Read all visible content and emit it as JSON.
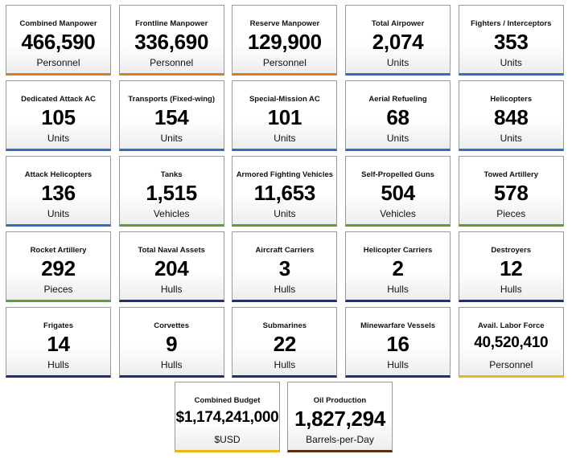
{
  "cards": [
    {
      "label": "Combined Manpower",
      "value": "466,590",
      "unit": "Personnel",
      "accent": "#e07a1a"
    },
    {
      "label": "Frontline Manpower",
      "value": "336,690",
      "unit": "Personnel",
      "accent": "#e07a1a"
    },
    {
      "label": "Reserve Manpower",
      "value": "129,900",
      "unit": "Personnel",
      "accent": "#e07a1a"
    },
    {
      "label": "Total Airpower",
      "value": "2,074",
      "unit": "Units",
      "accent": "#2e6fc4"
    },
    {
      "label": "Fighters / Interceptors",
      "value": "353",
      "unit": "Units",
      "accent": "#2e6fc4"
    },
    {
      "label": "Dedicated Attack AC",
      "value": "105",
      "unit": "Units",
      "accent": "#2e6fc4"
    },
    {
      "label": "Transports (Fixed-wing)",
      "value": "154",
      "unit": "Units",
      "accent": "#2e6fc4"
    },
    {
      "label": "Special-Mission AC",
      "value": "101",
      "unit": "Units",
      "accent": "#2e6fc4"
    },
    {
      "label": "Aerial Refueling",
      "value": "68",
      "unit": "Units",
      "accent": "#2e6fc4"
    },
    {
      "label": "Helicopters",
      "value": "848",
      "unit": "Units",
      "accent": "#2e6fc4"
    },
    {
      "label": "Attack Helicopters",
      "value": "136",
      "unit": "Units",
      "accent": "#2e6fc4"
    },
    {
      "label": "Tanks",
      "value": "1,515",
      "unit": "Vehicles",
      "accent": "#5aa02c"
    },
    {
      "label": "Armored Fighting Vehicles",
      "value": "11,653",
      "unit": "Units",
      "accent": "#5aa02c"
    },
    {
      "label": "Self-Propelled Guns",
      "value": "504",
      "unit": "Vehicles",
      "accent": "#5aa02c"
    },
    {
      "label": "Towed Artillery",
      "value": "578",
      "unit": "Pieces",
      "accent": "#5aa02c"
    },
    {
      "label": "Rocket Artillery",
      "value": "292",
      "unit": "Pieces",
      "accent": "#5aa02c"
    },
    {
      "label": "Total Naval Assets",
      "value": "204",
      "unit": "Hulls",
      "accent": "#1d2f7a"
    },
    {
      "label": "Aircraft Carriers",
      "value": "3",
      "unit": "Hulls",
      "accent": "#1d2f7a"
    },
    {
      "label": "Helicopter Carriers",
      "value": "2",
      "unit": "Hulls",
      "accent": "#1d2f7a"
    },
    {
      "label": "Destroyers",
      "value": "12",
      "unit": "Hulls",
      "accent": "#1d2f7a"
    },
    {
      "label": "Frigates",
      "value": "14",
      "unit": "Hulls",
      "accent": "#1d2f7a"
    },
    {
      "label": "Corvettes",
      "value": "9",
      "unit": "Hulls",
      "accent": "#1d2f7a"
    },
    {
      "label": "Submarines",
      "value": "22",
      "unit": "Hulls",
      "accent": "#1d2f7a"
    },
    {
      "label": "Minewarfare Vessels",
      "value": "16",
      "unit": "Hulls",
      "accent": "#1d2f7a"
    },
    {
      "label": "Avail. Labor Force",
      "value": "40,520,410",
      "unit": "Personnel",
      "accent": "#e8b816"
    }
  ],
  "bottom_cards": [
    {
      "label": "Combined Budget",
      "value": "$1,174,241,000",
      "unit": "$USD",
      "accent": "#e8b816"
    },
    {
      "label": "Oil Production",
      "value": "1,827,294",
      "unit": "Barrels-per-Day",
      "accent": "#5a2e12"
    }
  ]
}
